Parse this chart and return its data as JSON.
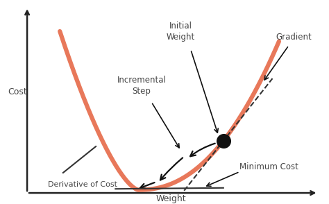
{
  "background_color": "#ffffff",
  "curve_color": "#E8785A",
  "curve_linewidth": 4.5,
  "axis_color": "#222222",
  "text_color": "#444444",
  "dot_color": "#111111",
  "dot_size": 200,
  "gradient_line_color": "#333333",
  "derivative_line_color": "#333333",
  "minimum_line_color": "#333333",
  "arrow_color": "#111111",
  "labels": {
    "cost": "Cost",
    "weight": "Weight",
    "initial_weight": "Initial\nWeight",
    "incremental_step": "Incremental\nStep",
    "gradient": "Gradient",
    "derivative": "Derivative of Cost",
    "minimum_cost": "Minimum Cost"
  },
  "xlim": [
    0,
    10
  ],
  "ylim": [
    0,
    10
  ]
}
